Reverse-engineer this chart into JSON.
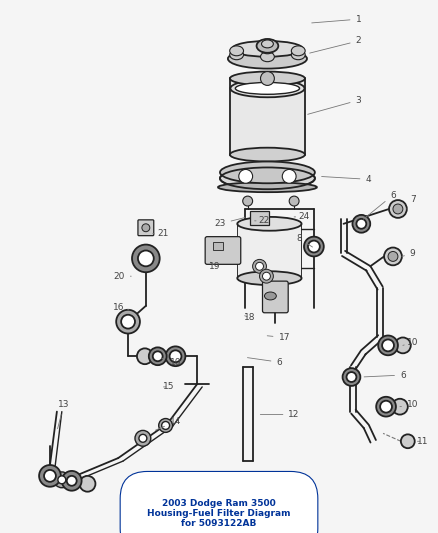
{
  "title": "2003 Dodge Ram 3500\nHousing-Fuel Filter Diagram\nfor 5093122AB",
  "bg_color": "#f5f5f5",
  "line_color": "#222222",
  "label_color": "#555555",
  "figsize": [
    4.38,
    5.33
  ],
  "dpi": 100
}
